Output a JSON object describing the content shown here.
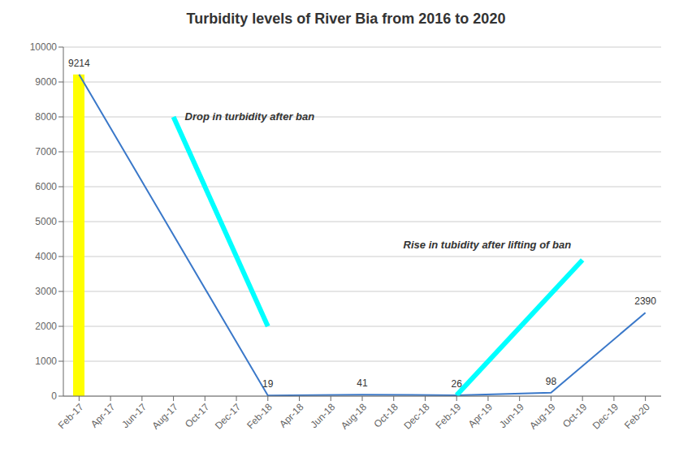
{
  "chart_data": {
    "type": "line",
    "title": "Turbidity levels of River Bia from 2016 to 2020",
    "categories": [
      "Feb-17",
      "Apr-17",
      "Jun-17",
      "Aug-17",
      "Oct-17",
      "Dec-17",
      "Feb-18",
      "Apr-18",
      "Jun-18",
      "Aug-18",
      "Oct-18",
      "Dec-18",
      "Feb-19",
      "Apr-19",
      "Jun-19",
      "Aug-19",
      "Oct-19",
      "Dec-19",
      "Feb-20"
    ],
    "series": [
      {
        "type": "line",
        "color": "#3a78c9",
        "values": [
          9214,
          null,
          null,
          null,
          null,
          null,
          19,
          null,
          null,
          41,
          null,
          null,
          26,
          null,
          null,
          98,
          null,
          null,
          2390
        ],
        "data_labels": true
      },
      {
        "type": "bar",
        "color": "#ffff00",
        "values": [
          9214,
          null,
          null,
          null,
          null,
          null,
          null,
          null,
          null,
          null,
          null,
          null,
          null,
          null,
          null,
          null,
          null,
          null,
          null
        ]
      },
      {
        "type": "line",
        "color": "#00ffff",
        "values": [
          null,
          null,
          null,
          8000,
          null,
          null,
          2000,
          null,
          null,
          null,
          null,
          null,
          null,
          null,
          null,
          null,
          null,
          null,
          null
        ],
        "annotation": "Drop in turbidity after ban"
      },
      {
        "type": "line",
        "color": "#00ffff",
        "values": [
          null,
          null,
          null,
          null,
          null,
          null,
          null,
          null,
          null,
          null,
          null,
          null,
          26,
          null,
          null,
          null,
          3900,
          null,
          null
        ],
        "annotation": "Rise in tubidity after lifting of ban"
      }
    ],
    "ylim": [
      0,
      10000
    ],
    "yticks": [
      0,
      1000,
      2000,
      3000,
      4000,
      5000,
      6000,
      7000,
      8000,
      9000,
      10000
    ],
    "grid": true
  }
}
